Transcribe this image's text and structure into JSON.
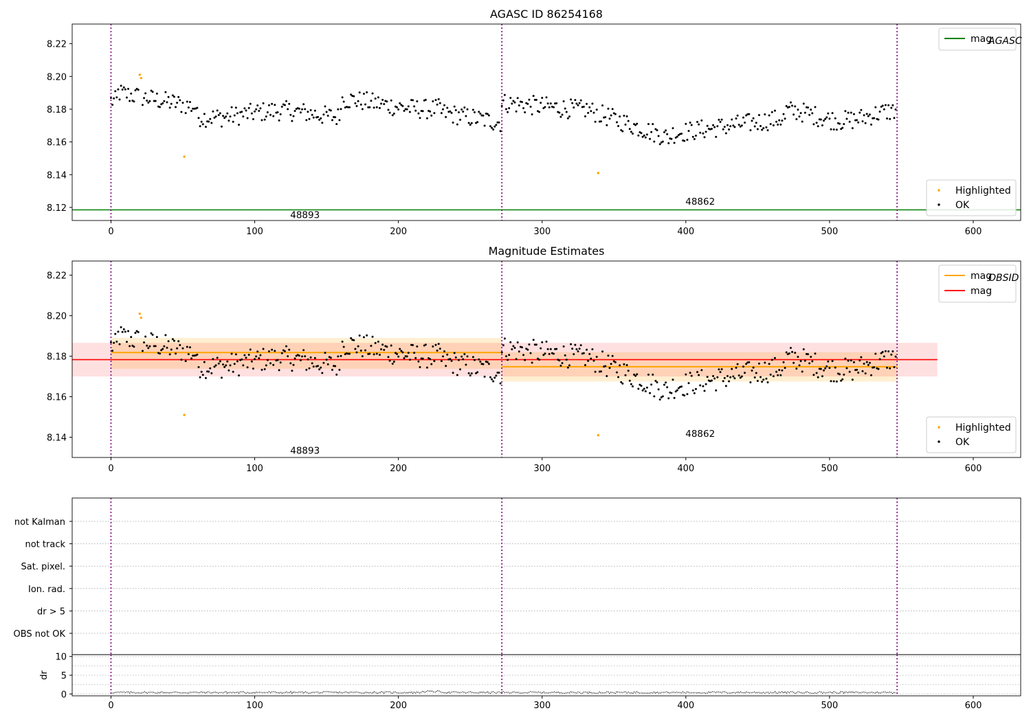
{
  "chart_data": [
    {
      "type": "scatter",
      "title": "AGASC ID 86254168",
      "xlim": [
        -27,
        633
      ],
      "ylim": [
        8.112,
        8.232
      ],
      "xticks": [
        0,
        100,
        200,
        300,
        400,
        500,
        600
      ],
      "yticks": [
        8.12,
        8.14,
        8.16,
        8.18,
        8.2,
        8.22
      ],
      "obs_boundaries": [
        0,
        272,
        547
      ],
      "obs_labels": [
        {
          "text": "48893",
          "x": 135,
          "y": 8.1155
        },
        {
          "text": "48862",
          "x": 410,
          "y": 8.1238
        }
      ],
      "lines": [
        {
          "name": "mag",
          "name_sub": "AGASC",
          "y": 8.1185,
          "color": "#008000"
        }
      ],
      "series": [
        {
          "name": "Highlighted",
          "color": "#ffa500",
          "x": [
            20,
            21,
            51,
            339
          ],
          "y": [
            8.201,
            8.199,
            8.151,
            8.141
          ]
        },
        {
          "name": "OK",
          "color": "#000000"
        }
      ],
      "legend_lines": "upper right",
      "legend_points": "lower right"
    },
    {
      "type": "scatter",
      "title": "Magnitude Estimates",
      "xlim": [
        -27,
        633
      ],
      "ylim": [
        8.13,
        8.227
      ],
      "xticks": [
        0,
        100,
        200,
        300,
        400,
        500,
        600
      ],
      "yticks": [
        8.14,
        8.16,
        8.18,
        8.2,
        8.22
      ],
      "obs_boundaries": [
        0,
        272,
        547
      ],
      "obs_labels": [
        {
          "text": "48893",
          "x": 135,
          "y": 8.1335
        },
        {
          "text": "48862",
          "x": 410,
          "y": 8.1418
        }
      ],
      "lines": [
        {
          "name": "mag",
          "name_sub": "OBSID",
          "color": "#ffa500",
          "segments": [
            {
              "x0": 0,
              "x1": 272,
              "y": 8.1818
            },
            {
              "x0": 272,
              "x1": 547,
              "y": 8.1748
            }
          ]
        },
        {
          "name": "mag",
          "color": "#ff0000",
          "x0": -27,
          "x1": 575,
          "y": 8.1783
        }
      ],
      "bands": [
        {
          "color": "#ffa500",
          "x0": 0,
          "x1": 272,
          "y0": 8.1738,
          "y1": 8.189
        },
        {
          "color": "#ffa500",
          "x0": 272,
          "x1": 547,
          "y0": 8.1675,
          "y1": 8.182
        },
        {
          "color": "#ff0000",
          "x0": -27,
          "x1": 575,
          "y0": 8.17,
          "y1": 8.1866
        }
      ],
      "series": [
        {
          "name": "Highlighted",
          "color": "#ffa500",
          "x": [
            20,
            21,
            51,
            339
          ],
          "y": [
            8.201,
            8.199,
            8.151,
            8.141
          ]
        },
        {
          "name": "OK",
          "color": "#000000"
        }
      ],
      "legend_lines": "upper right",
      "legend_points": "lower right"
    },
    {
      "type": "scatter",
      "xlim": [
        -27,
        633
      ],
      "xticks": [
        0,
        100,
        200,
        300,
        400,
        500,
        600
      ],
      "obs_boundaries": [
        0,
        272,
        547
      ],
      "flag_rows": [
        "not Kalman",
        "not track",
        "Sat. pixel.",
        "Ion. rad.",
        "dr > 5",
        "OBS not OK"
      ]
    },
    {
      "type": "line",
      "ylabel": "dr",
      "xlim": [
        -27,
        633
      ],
      "ylim": [
        -0.5,
        10.5
      ],
      "xticks": [
        0,
        100,
        200,
        300,
        400,
        500,
        600
      ],
      "yticks": [
        0,
        5,
        10
      ],
      "minor_gridlines": [
        2.5,
        7.5
      ],
      "obs_boundaries": [
        0,
        272,
        547
      ],
      "series": [
        {
          "color": "#000000",
          "approx_range": [
            0.1,
            0.7
          ]
        }
      ]
    }
  ]
}
